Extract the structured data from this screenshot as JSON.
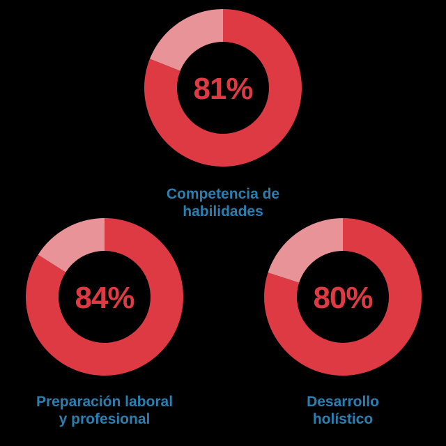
{
  "colors": {
    "background": "#000000",
    "primary": "#de3a44",
    "remainder": "#e89398",
    "caption": "#2a7fb0"
  },
  "chart_data": [
    {
      "type": "pie",
      "variant": "donut",
      "value_percent": 81,
      "label": "81%",
      "caption": [
        "Competencia de",
        "habilidades"
      ]
    },
    {
      "type": "pie",
      "variant": "donut",
      "value_percent": 84,
      "label": "84%",
      "caption": [
        "Preparación laboral",
        "y profesional"
      ]
    },
    {
      "type": "pie",
      "variant": "donut",
      "value_percent": 80,
      "label": "80%",
      "caption": [
        "Desarrollo",
        "holístico"
      ]
    }
  ]
}
